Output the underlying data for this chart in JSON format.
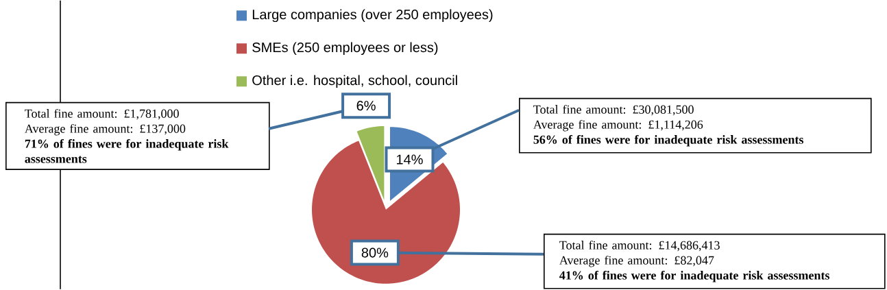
{
  "chart_data": {
    "type": "pie",
    "categories": [
      "Large companies (over 250 employees)",
      "SMEs (250 employees or less)",
      "Other i.e. hospital, school, council"
    ],
    "values": [
      14,
      80,
      6
    ],
    "colors": [
      "#4f81bd",
      "#c0504d",
      "#9bbb59"
    ],
    "value_labels": [
      "14%",
      "80%",
      "6%"
    ],
    "legend": "top",
    "annotations": [
      "Total fine amount: £30,081,500",
      "Average fine amount: £1,114,206",
      "56% of fines were for inadequate risk assessments",
      "Total fine amount: £14,686,413",
      "Average fine amount: £82,047",
      "41% of fines were for inadequate risk assessments",
      "Total fine amount: £1,781,000",
      "Average fine amount: £137,000",
      "71% of fines were for inadequate risk assessments"
    ]
  }
}
